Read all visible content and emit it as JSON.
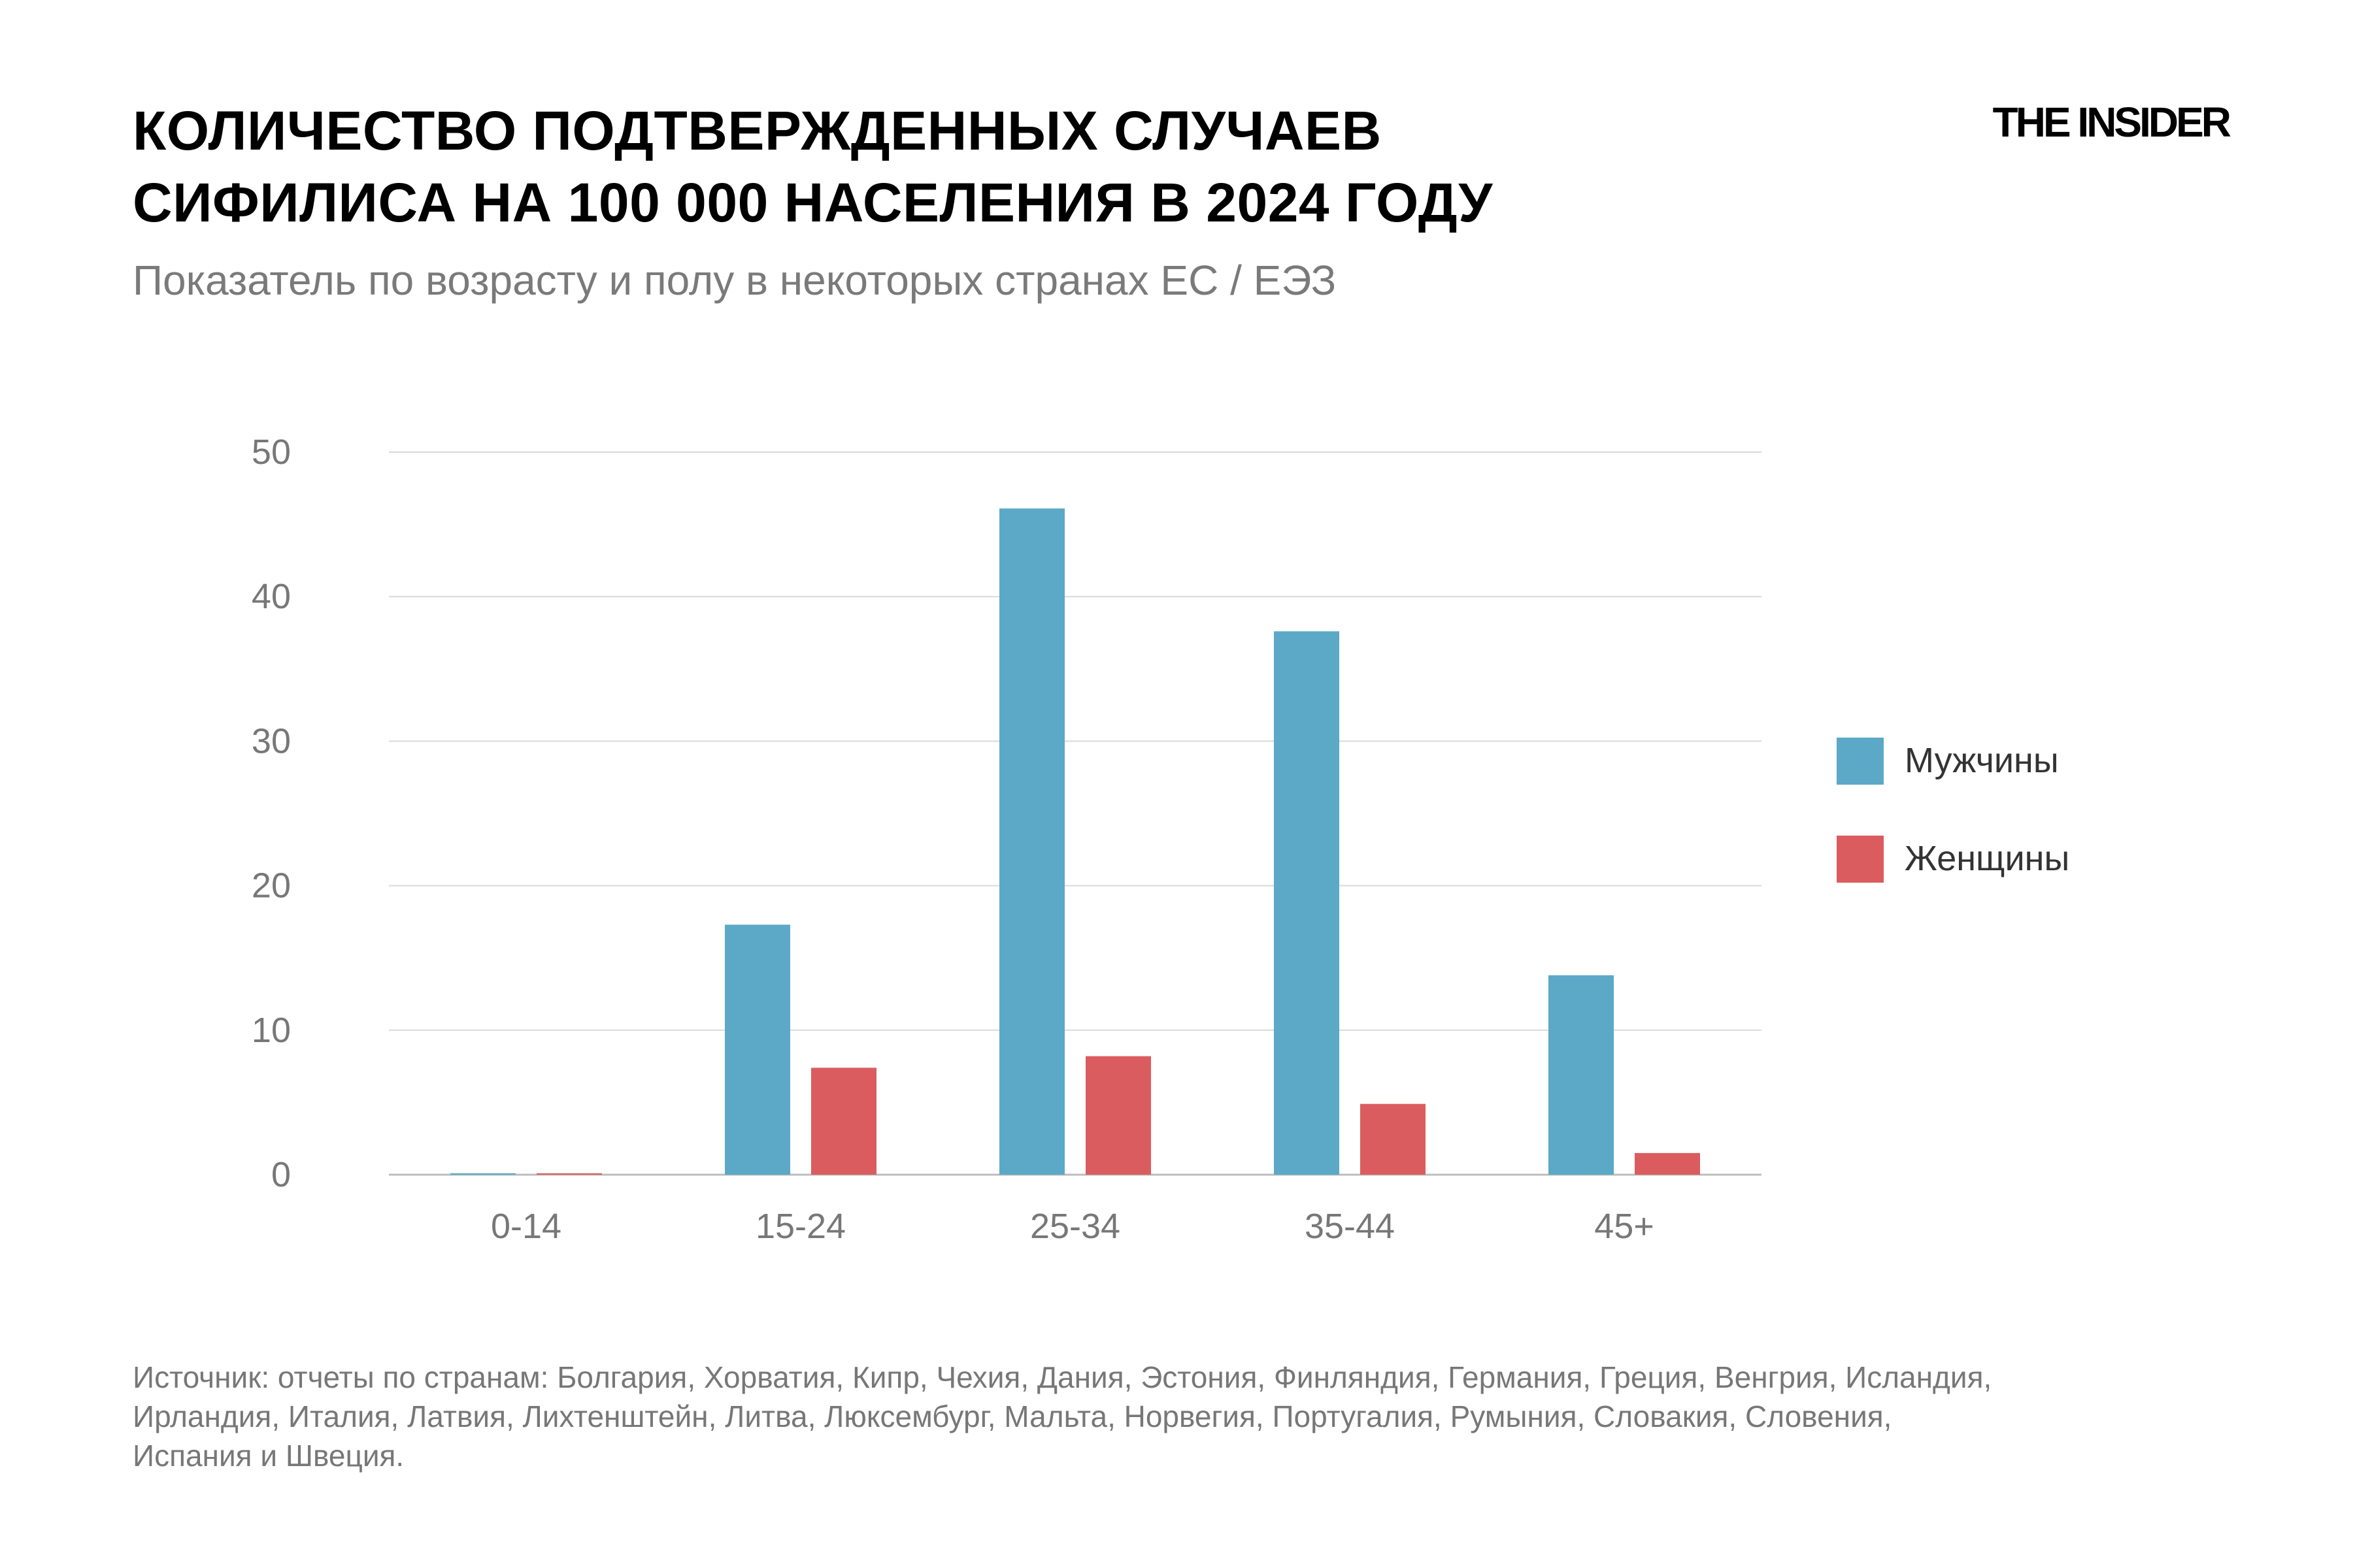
{
  "title_lines": [
    "КОЛИЧЕСТВО ПОДТВЕРЖДЕННЫХ СЛУЧАЕВ",
    "СИФИЛИСА НА 100 000 НАСЕЛЕНИЯ В 2024 ГОДУ"
  ],
  "subtitle": "Показатель по возрасту и полу в некоторых странах ЕС / ЕЭЗ",
  "logo": "THE INSIDER",
  "source_lines": [
    "Источник: отчеты по странам: Болгария, Хорватия, Кипр, Чехия, Дания, Эстония, Финляндия, Германия, Греция, Венгрия, Исландия,",
    "Ирландия, Италия, Латвия, Лихтенштейн, Литва, Люксембург, Мальта, Норвегия, Португалия, Румыния, Словакия, Словения,",
    "Испания и Швеция."
  ],
  "colors": {
    "men": "#5ba9c7",
    "women": "#db5c5f",
    "grid": "#d9d9d9",
    "axis_text": "#777777"
  },
  "chart_data": {
    "type": "bar",
    "categories": [
      "0-14",
      "15-24",
      "25-34",
      "35-44",
      "45+"
    ],
    "series": [
      {
        "name": "Мужчины",
        "values": [
          0.1,
          17.3,
          46.1,
          37.6,
          13.8
        ]
      },
      {
        "name": "Женщины",
        "values": [
          0.1,
          7.4,
          8.2,
          4.9,
          1.5
        ]
      }
    ],
    "y_ticks": [
      "0",
      "10",
      "20",
      "30",
      "40",
      "50"
    ],
    "ylim": [
      0,
      50
    ],
    "grid": true,
    "legend_position": "right"
  }
}
